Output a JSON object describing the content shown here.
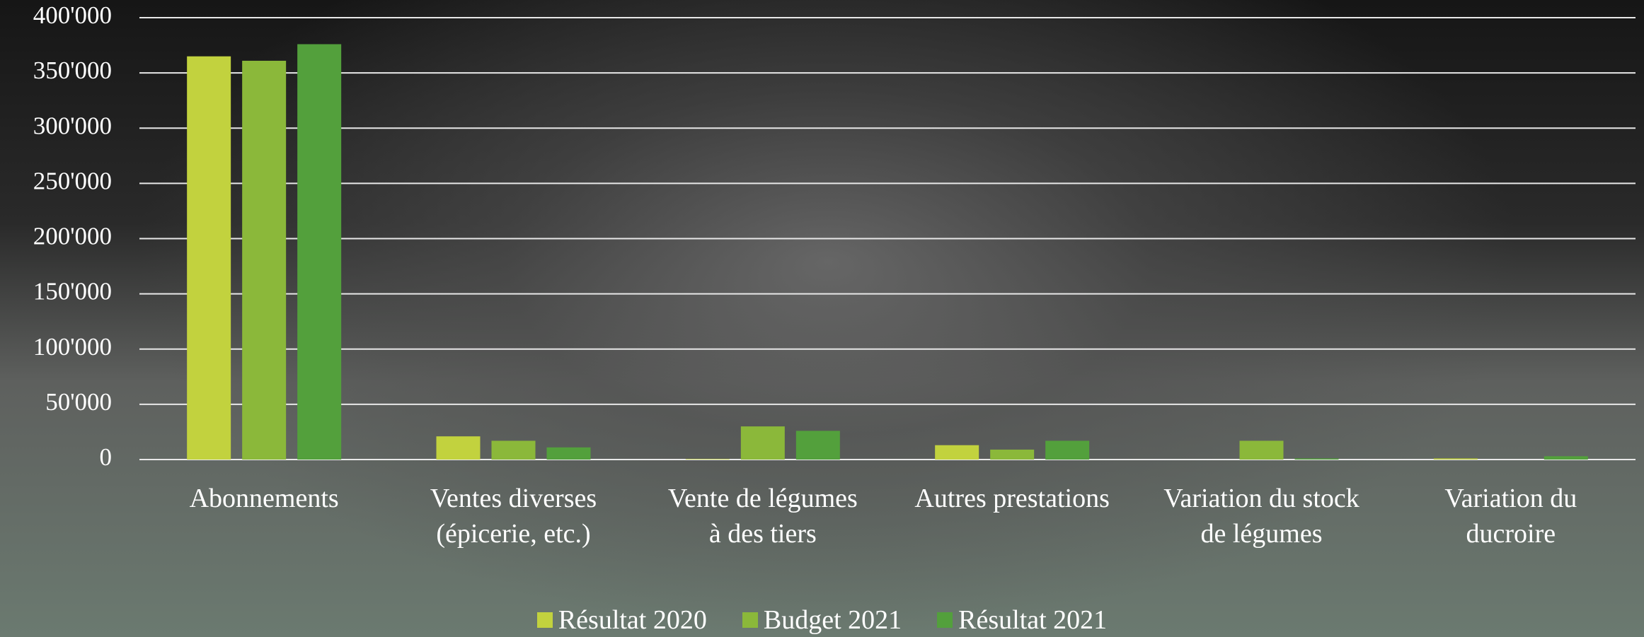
{
  "chart_data": {
    "type": "bar",
    "categories": [
      "Abonnements",
      "Ventes diverses (épicerie, etc.)",
      "Vente de légumes à des tiers",
      "Autres prestations",
      "Variation du stock de légumes",
      "Variation du ducroire"
    ],
    "series": [
      {
        "name": "Résultat 2020",
        "color": "#c2d23e",
        "values": [
          365000,
          21000,
          500,
          13000,
          0,
          1000
        ]
      },
      {
        "name": "Budget 2021",
        "color": "#8bb83a",
        "values": [
          361000,
          17000,
          30000,
          9000,
          17000,
          0
        ]
      },
      {
        "name": "Résultat 2021",
        "color": "#53a03c",
        "values": [
          376000,
          11000,
          26000,
          17000,
          1000,
          3000
        ]
      }
    ],
    "ylim": [
      0,
      400000
    ],
    "yticks": [
      0,
      {
        "value": 50000,
        "label": "50'000"
      },
      {
        "value": 100000,
        "label": "100'000"
      },
      {
        "value": 150000,
        "label": "150'000"
      },
      {
        "value": 200000,
        "label": "200'000"
      },
      {
        "value": 250000,
        "label": "250'000"
      },
      {
        "value": 300000,
        "label": "300'000"
      },
      {
        "value": 350000,
        "label": "350'000"
      },
      {
        "value": 400000,
        "label": "400'000"
      }
    ],
    "grid": true,
    "legend": "bottom"
  }
}
